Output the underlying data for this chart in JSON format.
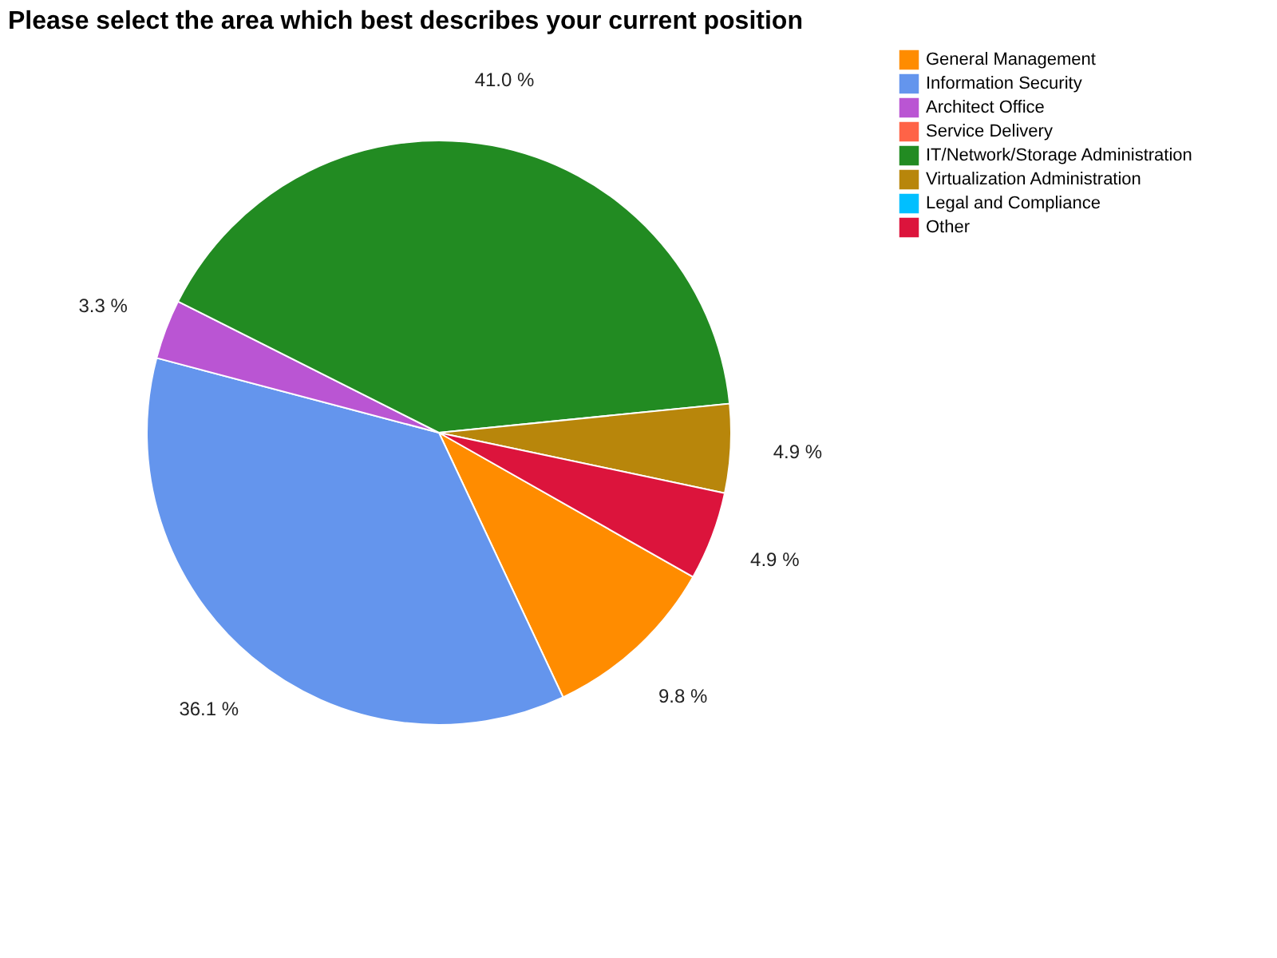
{
  "chart_data": {
    "type": "pie",
    "title": "Please select the area which best describes your current position",
    "categories": [
      "General Management",
      "Information Security",
      "Architect Office",
      "Service Delivery",
      "IT/Network/Storage Administration",
      "Virtualization Administration",
      "Legal and Compliance",
      "Other"
    ],
    "values": [
      9.8,
      36.1,
      3.3,
      0,
      41.0,
      4.9,
      0,
      4.9
    ],
    "colors": [
      "#ff8c00",
      "#6495ed",
      "#ba55d3",
      "#ff6347",
      "#228b22",
      "#b8860b",
      "#00bfff",
      "#dc143c"
    ],
    "value_labels": [
      "9.8 %",
      "36.1 %",
      "3.3 %",
      null,
      "41.0 %",
      "4.9 %",
      null,
      "4.9 %"
    ],
    "legend": "right"
  }
}
